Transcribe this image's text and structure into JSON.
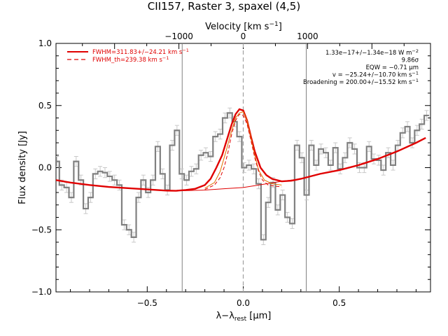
{
  "chart_data": {
    "type": "line",
    "title": "CII157, Raster 3, spaxel (4,5)",
    "xlabel": "λ−λ",
    "xlabel_sub": "rest",
    "xlabel_unit": " [μm]",
    "ylabel": "Flux density [Jy]",
    "top_axis": {
      "label": "Velocity [km s",
      "label_sup": "−1",
      "label_close": "]",
      "ticks": [
        -1000,
        0,
        1000
      ],
      "tick_labels": [
        "−1000",
        "0",
        "1000"
      ],
      "um_per_kms": 0.000335
    },
    "xlim": [
      -0.975,
      0.975
    ],
    "ylim": [
      -1.0,
      1.0
    ],
    "x_ticks": [
      -0.5,
      0.0,
      0.5
    ],
    "x_tick_labels": [
      "−0.5",
      "0.0",
      "0.5"
    ],
    "y_ticks": [
      -1.0,
      -0.5,
      0.0,
      0.5,
      1.0
    ],
    "y_tick_labels": [
      "−1.0",
      "−0.5",
      "0.0",
      "0.5",
      "1.0"
    ],
    "vertical_lines_gray": [
      -0.318,
      0.328
    ],
    "vertical_line_dashed": 0.0,
    "grid": false,
    "legend_position": "top-left",
    "legend": [
      {
        "label": "FWHM=311.83+/−24.21 km s",
        "sup": "−1",
        "style": "solid",
        "color": "#e00000"
      },
      {
        "label": "FWHM_th=239.38 km s",
        "sup": "−1",
        "style": "dashed",
        "color": "#e00000"
      }
    ],
    "annotations": [
      {
        "text": "1.33e−17+/−1.34e−18 W m",
        "sup": "−2"
      },
      {
        "text": "9.86σ",
        "sup": ""
      },
      {
        "text": "EQW = −0.71 μm",
        "sup": ""
      },
      {
        "text": "v = −25.24+/−10.70 km s",
        "sup": "−1"
      },
      {
        "text": "Broadening = 200.00+/−15.52 km s",
        "sup": "−1"
      }
    ],
    "series": [
      {
        "style": "step-gray",
        "color": "#808080",
        "x": [
          -0.97,
          -0.945,
          -0.92,
          -0.895,
          -0.87,
          -0.845,
          -0.82,
          -0.795,
          -0.77,
          -0.745,
          -0.72,
          -0.695,
          -0.67,
          -0.645,
          -0.62,
          -0.595,
          -0.57,
          -0.545,
          -0.52,
          -0.495,
          -0.47,
          -0.445,
          -0.42,
          -0.395,
          -0.37,
          -0.345,
          -0.32,
          -0.295,
          -0.27,
          -0.245,
          -0.22,
          -0.195,
          -0.17,
          -0.145,
          -0.12,
          -0.095,
          -0.07,
          -0.045,
          -0.02,
          0.005,
          0.03,
          0.055,
          0.08,
          0.105,
          0.13,
          0.155,
          0.18,
          0.205,
          0.23,
          0.255,
          0.28,
          0.305,
          0.33,
          0.355,
          0.38,
          0.405,
          0.43,
          0.455,
          0.48,
          0.505,
          0.53,
          0.555,
          0.58,
          0.605,
          0.63,
          0.655,
          0.68,
          0.705,
          0.73,
          0.755,
          0.78,
          0.805,
          0.83,
          0.855,
          0.88,
          0.905,
          0.93,
          0.955
        ],
        "y": [
          0.05,
          -0.14,
          -0.16,
          -0.24,
          0.05,
          -0.1,
          -0.33,
          -0.24,
          -0.05,
          -0.03,
          -0.04,
          -0.07,
          -0.1,
          -0.14,
          -0.46,
          -0.5,
          -0.56,
          -0.24,
          -0.1,
          -0.2,
          -0.1,
          0.17,
          -0.05,
          -0.18,
          0.18,
          0.3,
          -0.05,
          -0.1,
          -0.03,
          -0.01,
          0.1,
          0.12,
          0.09,
          0.25,
          0.27,
          0.4,
          0.44,
          0.37,
          0.25,
          0.0,
          0.02,
          -0.01,
          -0.13,
          -0.58,
          -0.28,
          -0.12,
          -0.34,
          -0.22,
          -0.4,
          -0.45,
          0.18,
          0.08,
          -0.22,
          0.18,
          0.02,
          0.15,
          0.12,
          0.02,
          0.16,
          -0.01,
          0.08,
          0.2,
          0.15,
          0.0,
          0.0,
          0.17,
          0.07,
          0.06,
          -0.02,
          0.12,
          0.02,
          0.18,
          0.28,
          0.33,
          0.2,
          0.3,
          0.35,
          0.42
        ],
        "err": 0.04
      },
      {
        "style": "thick-red-total",
        "color": "#e00000",
        "x": [
          -0.975,
          -0.9,
          -0.8,
          -0.7,
          -0.6,
          -0.5,
          -0.4,
          -0.35,
          -0.3,
          -0.25,
          -0.2,
          -0.17,
          -0.14,
          -0.11,
          -0.08,
          -0.06,
          -0.04,
          -0.02,
          0.0,
          0.02,
          0.04,
          0.06,
          0.09,
          0.12,
          0.15,
          0.2,
          0.25,
          0.3,
          0.4,
          0.5,
          0.6,
          0.7,
          0.8,
          0.9,
          0.95
        ],
        "y": [
          -0.1,
          -0.12,
          -0.14,
          -0.155,
          -0.165,
          -0.175,
          -0.185,
          -0.186,
          -0.18,
          -0.17,
          -0.14,
          -0.09,
          0.0,
          0.1,
          0.25,
          0.35,
          0.43,
          0.47,
          0.46,
          0.38,
          0.25,
          0.13,
          0.0,
          -0.06,
          -0.09,
          -0.11,
          -0.105,
          -0.09,
          -0.05,
          -0.02,
          0.02,
          0.07,
          0.13,
          0.2,
          0.24
        ]
      },
      {
        "style": "thin-red-continuum",
        "color": "#e00000",
        "x": [
          -0.975,
          -0.9,
          -0.8,
          -0.7,
          -0.6,
          -0.5,
          -0.4,
          -0.3,
          -0.2,
          -0.1,
          0.0,
          0.1,
          0.2,
          0.3,
          0.4,
          0.5,
          0.6,
          0.7,
          0.8,
          0.9,
          0.95
        ],
        "y": [
          -0.1,
          -0.12,
          -0.14,
          -0.155,
          -0.165,
          -0.175,
          -0.182,
          -0.185,
          -0.18,
          -0.17,
          -0.16,
          -0.135,
          -0.11,
          -0.09,
          -0.05,
          -0.02,
          0.02,
          0.07,
          0.13,
          0.2,
          0.24
        ]
      },
      {
        "style": "thin-orange-line",
        "color": "#e07000",
        "x": [
          -0.2,
          -0.15,
          -0.12,
          -0.09,
          -0.06,
          -0.04,
          -0.02,
          0.0,
          0.02,
          0.04,
          0.06,
          0.08,
          0.11,
          0.15,
          0.2
        ],
        "y": [
          -0.165,
          -0.12,
          -0.03,
          0.13,
          0.3,
          0.4,
          0.44,
          0.45,
          0.38,
          0.24,
          0.1,
          -0.02,
          -0.1,
          -0.13,
          -0.14
        ]
      },
      {
        "style": "dashed-red-thermal",
        "color": "#e00000",
        "x": [
          -0.2,
          -0.15,
          -0.12,
          -0.1,
          -0.08,
          -0.06,
          -0.04,
          -0.02,
          0.0,
          0.02,
          0.04,
          0.06,
          0.08,
          0.1,
          0.13,
          0.17,
          0.2
        ],
        "y": [
          -0.175,
          -0.14,
          -0.08,
          0.0,
          0.12,
          0.27,
          0.38,
          0.43,
          0.42,
          0.35,
          0.22,
          0.08,
          -0.03,
          -0.1,
          -0.14,
          -0.15,
          -0.155
        ]
      }
    ]
  }
}
